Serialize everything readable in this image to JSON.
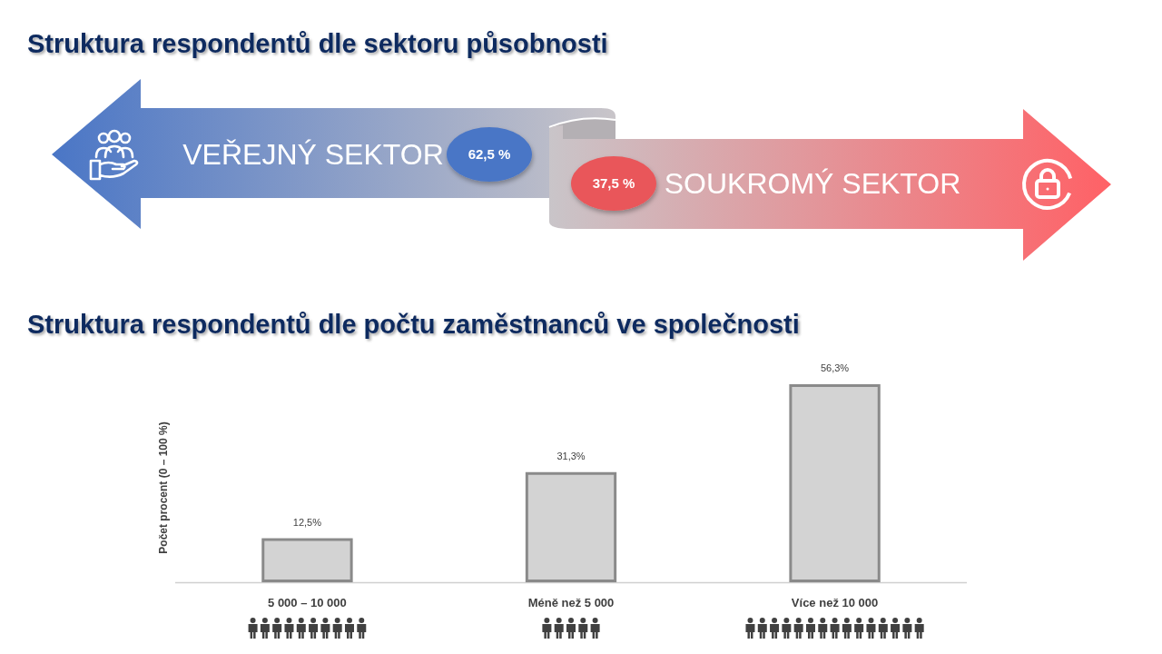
{
  "chart_data": [
    {
      "type": "other",
      "title": "Struktura respondentů dle sektoru působnosti",
      "categories": [
        "VEŘEJNÝ SEKTOR",
        "SOUKROMÝ SEKTOR"
      ],
      "values": [
        62.5,
        37.5
      ],
      "value_labels": [
        "62,5 %",
        "37,5 %"
      ],
      "colors": [
        "#4a76c6",
        "#e9565a"
      ]
    },
    {
      "type": "bar",
      "title": "Struktura respondentů dle počtu zaměstnanců ve společnosti",
      "ylabel": "Počet procent (0 – 100 %)",
      "categories": [
        "5 000 – 10 000",
        "Méně než 5 000",
        "Více než 10 000"
      ],
      "values": [
        12.5,
        31.3,
        56.3
      ],
      "value_labels": [
        "12,5%",
        "31,3%",
        "56,3%"
      ],
      "color": "#d3d3d3"
    }
  ]
}
